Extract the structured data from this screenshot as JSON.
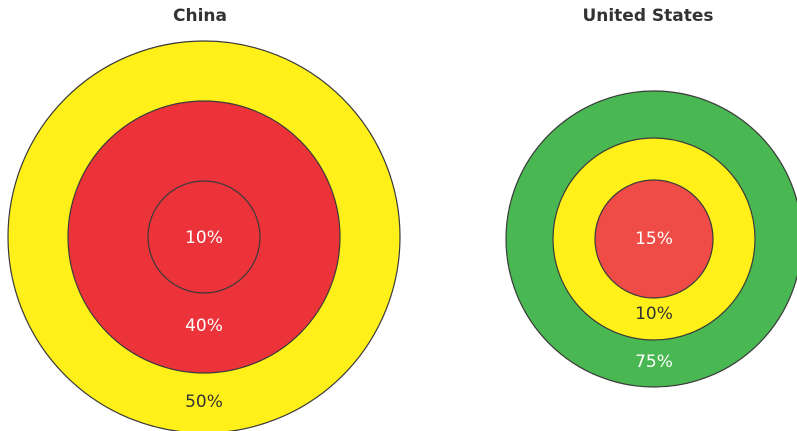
{
  "colors": {
    "yellow": "#fff01a",
    "red": "#ec333a",
    "red_light": "#ef4b47",
    "green": "#4ab852",
    "outline": "#3a3a3a",
    "label_light": "#ffffff",
    "label_dark": "#333333"
  },
  "panels": [
    {
      "title": "China",
      "rings": [
        {
          "label": "50%",
          "color": "#fff01a",
          "label_color": "#333333"
        },
        {
          "label": "40%",
          "color": "#ec333a",
          "label_color": "#ffffff"
        },
        {
          "label": "10%",
          "color": "#ec333a",
          "label_color": "#ffffff"
        }
      ]
    },
    {
      "title": "United States",
      "rings": [
        {
          "label": "75%",
          "color": "#4ab852",
          "label_color": "#ffffff"
        },
        {
          "label": "10%",
          "color": "#fff01a",
          "label_color": "#333333"
        },
        {
          "label": "15%",
          "color": "#ef4b47",
          "label_color": "#ffffff"
        }
      ]
    }
  ]
}
